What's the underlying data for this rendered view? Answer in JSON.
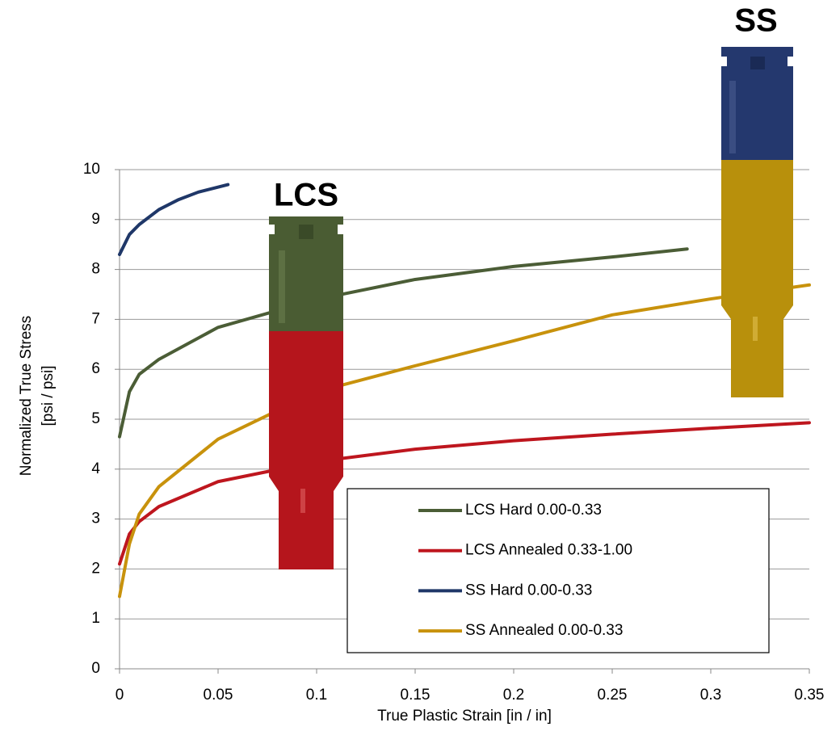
{
  "chart_data": {
    "type": "line",
    "xlabel": "True Plastic Strain [in / in]",
    "ylabel": [
      "Normalized True Stress",
      "[psi / psi]"
    ],
    "xlim": [
      0,
      0.35
    ],
    "ylim": [
      0,
      10
    ],
    "xticks": [
      0,
      0.05,
      0.1,
      0.15,
      0.2,
      0.25,
      0.3,
      0.35
    ],
    "yticks": [
      0,
      1,
      2,
      3,
      4,
      5,
      6,
      7,
      8,
      9,
      10
    ],
    "grid": true,
    "annotations": [
      "LCS",
      "SS"
    ],
    "series": [
      {
        "name": "LCS Hard 0.00-0.33",
        "color": "#4b5d36",
        "x": [
          0,
          0.005,
          0.01,
          0.02,
          0.05,
          0.1,
          0.15,
          0.2,
          0.25,
          0.288
        ],
        "values": [
          4.65,
          5.55,
          5.9,
          6.2,
          6.84,
          7.4,
          7.8,
          8.06,
          8.25,
          8.41
        ]
      },
      {
        "name": "LCS Annealed 0.33-1.00",
        "color": "#be161e",
        "x": [
          0,
          0.005,
          0.01,
          0.02,
          0.05,
          0.1,
          0.15,
          0.2,
          0.25,
          0.3,
          0.35
        ],
        "values": [
          2.1,
          2.7,
          2.95,
          3.25,
          3.75,
          4.15,
          4.4,
          4.57,
          4.7,
          4.82,
          4.93
        ]
      },
      {
        "name": "SS Hard 0.00-0.33",
        "color": "#1f3768",
        "x": [
          0,
          0.005,
          0.01,
          0.02,
          0.03,
          0.04,
          0.055
        ],
        "values": [
          8.3,
          8.7,
          8.9,
          9.2,
          9.4,
          9.55,
          9.7
        ]
      },
      {
        "name": "SS Annealed 0.00-0.33",
        "color": "#c8920c",
        "x": [
          0,
          0.005,
          0.01,
          0.02,
          0.05,
          0.1,
          0.15,
          0.2,
          0.25,
          0.3,
          0.35
        ],
        "values": [
          1.45,
          2.5,
          3.1,
          3.65,
          4.6,
          5.55,
          6.07,
          6.57,
          7.09,
          7.41,
          7.69
        ]
      }
    ]
  }
}
